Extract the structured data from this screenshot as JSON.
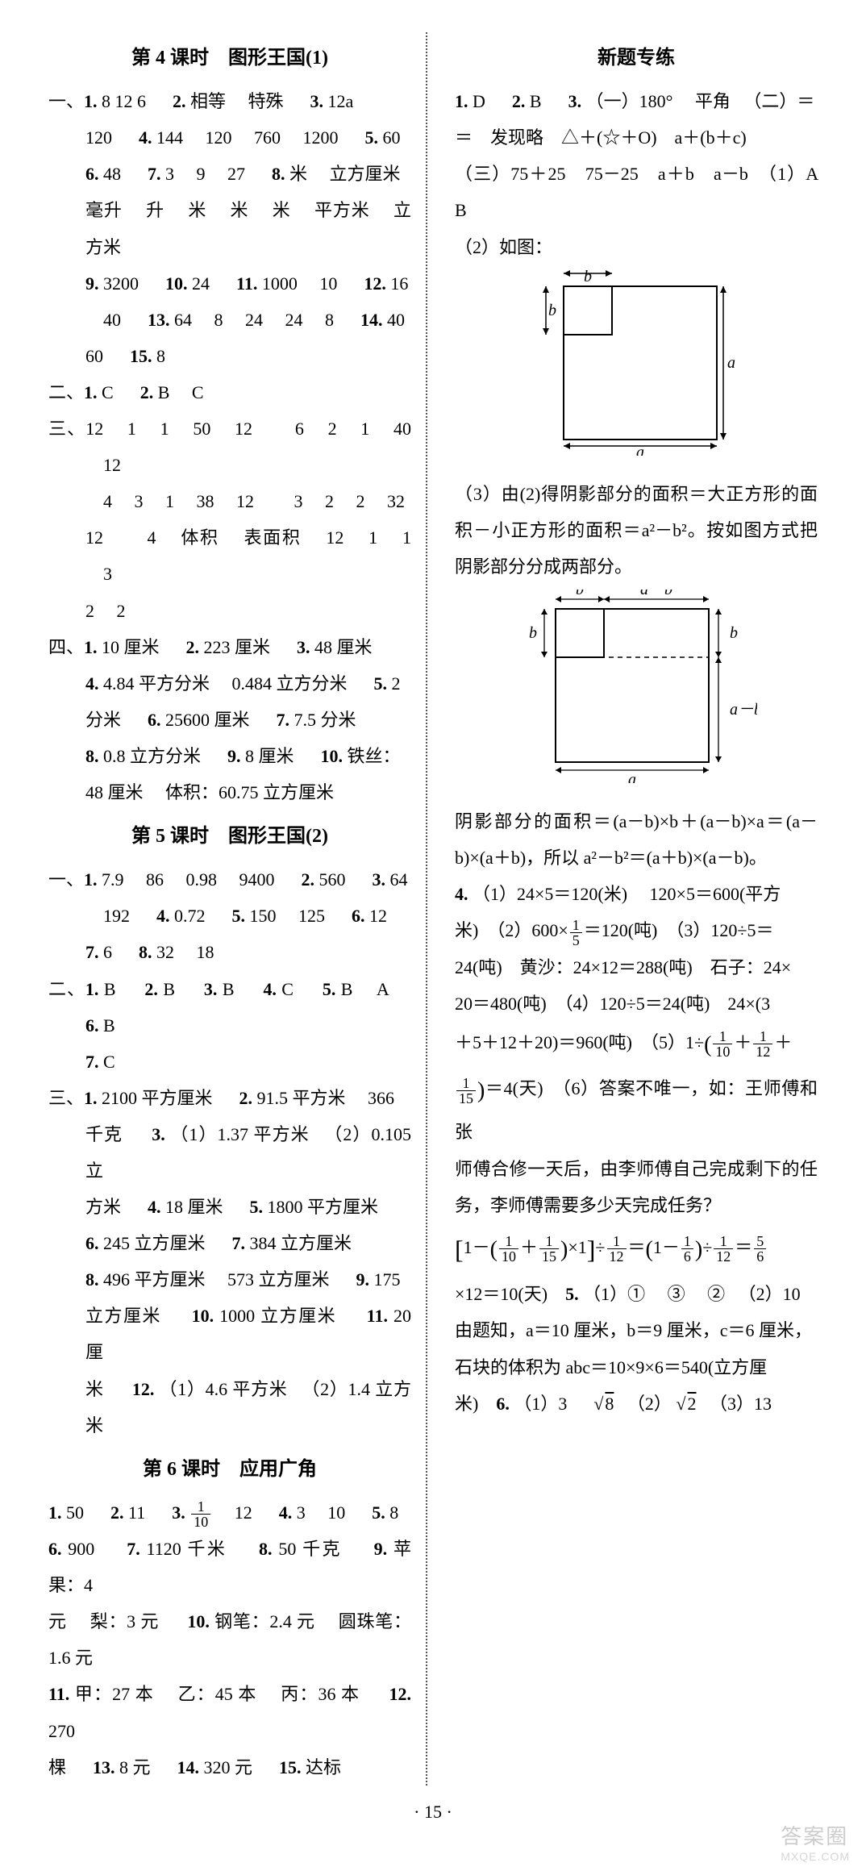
{
  "page_number_label": "· 15 ·",
  "watermark": {
    "main": "答案圈",
    "sub": "MXQE.COM"
  },
  "left": {
    "sec4": {
      "title": "第 4 课时　图形王国(1)",
      "yi": [
        {
          "lead": "一、",
          "parts": [
            "1.",
            "8",
            "12",
            "6",
            "　",
            "2.",
            "相等",
            "　特殊",
            "　",
            "3.",
            "12a"
          ]
        },
        {
          "indent": true,
          "parts": [
            "120",
            "　",
            "4.",
            "144",
            "　120",
            "　760",
            "　1200",
            "　",
            "5.",
            "60"
          ]
        },
        {
          "indent": true,
          "parts": [
            "6.",
            "48",
            "　",
            "7.",
            "3",
            "　9",
            "　27",
            "　",
            "8.",
            "米",
            "　立方厘米"
          ]
        },
        {
          "indent": true,
          "parts": [
            "毫升",
            "　升",
            "　米",
            "　米",
            "　米",
            "　平方米",
            "　立方米"
          ]
        },
        {
          "indent": true,
          "parts": [
            "9.",
            "3200",
            "　",
            "10.",
            "24",
            "　",
            "11.",
            "1000",
            "　10",
            "　",
            "12.",
            "16"
          ]
        },
        {
          "indent": true,
          "parts": [
            "　40",
            "　",
            "13.",
            "64",
            "　8",
            "　24",
            "　24",
            "　8",
            "　",
            "14.",
            "40"
          ]
        },
        {
          "indent": true,
          "parts": [
            "60",
            "　",
            "15.",
            "8"
          ]
        }
      ],
      "er": {
        "lead": "二、",
        "parts": [
          "1.",
          "C",
          "　",
          "2.",
          "B",
          "　C"
        ]
      },
      "san": [
        {
          "lead": "三、",
          "parts": [
            "12",
            "　1",
            "　1",
            "　50",
            "　12",
            "　　6",
            "　2",
            "　1",
            "　40",
            "　12"
          ]
        },
        {
          "indent": true,
          "parts": [
            "　4",
            "　3",
            "　1",
            "　38",
            "　12",
            "　　3",
            "　2",
            "　2",
            "　32"
          ]
        },
        {
          "indent": true,
          "parts": [
            "12",
            "　　4",
            "　体积",
            "　表面积",
            "　12",
            "　1",
            "　1",
            "　3"
          ]
        },
        {
          "indent": true,
          "parts": [
            "2",
            "　2"
          ]
        }
      ],
      "si": [
        {
          "lead": "四、",
          "parts": [
            "1.",
            "10 厘米",
            "　",
            "2.",
            "223 厘米",
            "　",
            "3.",
            "48 厘米"
          ]
        },
        {
          "indent": true,
          "parts": [
            "4.",
            "4.84 平方分米",
            "　0.484 立方分米",
            "　",
            "5.",
            "2"
          ]
        },
        {
          "indent": true,
          "parts": [
            "分米",
            "　",
            "6.",
            "25600 厘米",
            "　",
            "7.",
            "7.5 分米"
          ]
        },
        {
          "indent": true,
          "parts": [
            "8.",
            "0.8 立方分米",
            "　",
            "9.",
            "8 厘米",
            "　",
            "10.",
            "铁丝："
          ]
        },
        {
          "indent": true,
          "parts": [
            "48 厘米",
            "　体积：60.75 立方厘米"
          ]
        }
      ]
    },
    "sec5": {
      "title": "第 5 课时　图形王国(2)",
      "yi": [
        {
          "lead": "一、",
          "parts": [
            "1.",
            "7.9",
            "　86",
            "　0.98",
            "　9400",
            "　",
            "2.",
            "560",
            "　",
            "3.",
            "64"
          ]
        },
        {
          "indent": true,
          "parts": [
            "　192",
            "　",
            "4.",
            "0.72",
            "　",
            "5.",
            "150",
            "　125",
            "　",
            "6.",
            "12"
          ]
        },
        {
          "indent": true,
          "parts": [
            "7.",
            "6",
            "　",
            "8.",
            "32",
            "　18"
          ]
        }
      ],
      "er": [
        {
          "lead": "二、",
          "parts": [
            "1.",
            "B",
            "　",
            "2.",
            "B",
            "　",
            "3.",
            "B",
            "　",
            "4.",
            "C",
            "　",
            "5.",
            "B",
            "　A",
            "　",
            "6.",
            "B"
          ]
        },
        {
          "indent": true,
          "parts": [
            "7.",
            "C"
          ]
        }
      ],
      "san": [
        {
          "lead": "三、",
          "parts": [
            "1.",
            "2100 平方厘米",
            "　",
            "2.",
            "91.5 平方米",
            "　366"
          ]
        },
        {
          "indent": true,
          "parts": [
            "千克",
            "　",
            "3.",
            "（1）1.37 平方米",
            "　（2）0.105 立"
          ]
        },
        {
          "indent": true,
          "parts": [
            "方米",
            "　",
            "4.",
            "18 厘米",
            "　",
            "5.",
            "1800 平方厘米"
          ]
        },
        {
          "indent": true,
          "parts": [
            "6.",
            "245 立方厘米",
            "　",
            "7.",
            "384 立方厘米"
          ]
        },
        {
          "indent": true,
          "parts": [
            "8.",
            "496 平方厘米",
            "　573 立方厘米",
            "　",
            "9.",
            "175"
          ]
        },
        {
          "indent": true,
          "parts": [
            "立方厘米",
            "　",
            "10.",
            "1000 立方厘米",
            "　",
            "11.",
            "20 厘"
          ]
        },
        {
          "indent": true,
          "parts": [
            "米",
            "　",
            "12.",
            "（1）4.6 平方米",
            "　（2）1.4 立方米"
          ]
        }
      ]
    },
    "sec6": {
      "title": "第 6 课时　应用广角",
      "lines": [
        {
          "parts": [
            "1.",
            "50",
            "　",
            "2.",
            "11",
            "　",
            "3.",
            "FRAC_1_10",
            "　12",
            "　",
            "4.",
            "3",
            "　10",
            "　",
            "5.",
            "8"
          ]
        },
        {
          "parts": [
            "6.",
            "900",
            "　",
            "7.",
            "1120 千米",
            "　",
            "8.",
            "50 千克",
            "　",
            "9.",
            "苹果：4"
          ]
        },
        {
          "parts": [
            "元",
            "　梨：3 元",
            "　",
            "10.",
            "钢笔：2.4 元",
            "　圆珠笔：1.6 元"
          ]
        },
        {
          "parts": [
            "11.",
            "甲：27 本",
            "　乙：45 本",
            "　丙：36 本",
            "　",
            "12.",
            "270"
          ]
        },
        {
          "parts": [
            "棵",
            "　",
            "13.",
            "8 元",
            "　",
            "14.",
            "320 元",
            "　",
            "15.",
            "达标"
          ]
        }
      ]
    }
  },
  "right": {
    "title": "新题专练",
    "line1": {
      "parts": [
        "1.",
        "D",
        "　",
        "2.",
        "B",
        "　",
        "3.",
        "（一）180°",
        "　平角",
        "　（二）＝"
      ]
    },
    "line2": "＝　发现略　△＋(☆＋O)　a＋(b＋c)",
    "line3": "（三）75＋25　75－25　a＋b　a－b　（1）A　B",
    "line4": "（2）如图：",
    "fig1": {
      "outer_label_a": "a",
      "inner_label_b": "b",
      "outer_size": 190,
      "inner_size": 60,
      "stroke": "#000000",
      "text_fontsize": 20
    },
    "line5": "（3）由(2)得阴影部分的面积＝大正方形的面积－小正方形的面积＝a²－b²。按如图方式把阴影部分分成两部分。",
    "fig2": {
      "outer_label_a": "a",
      "label_b": "b",
      "label_amb": "a－b",
      "outer_size": 190,
      "b_size": 60,
      "stroke": "#000000",
      "text_fontsize": 20
    },
    "line6": "阴影部分的面积＝(a－b)×b＋(a－b)×a＝(a－b)×(a＋b)，所以 a²－b²＝(a＋b)×(a－b)。",
    "q4_p1": {
      "parts": [
        "4.",
        "（1）24×5＝120(米)",
        "　120×5＝600(平方"
      ]
    },
    "q4_p2": "米)　（2）600×",
    "q4_frac15": {
      "n": "1",
      "d": "5"
    },
    "q4_p2b": "＝120(吨)　（3）120÷5＝",
    "q4_p3": "24(吨)　黄沙：24×12＝288(吨)　石子：24×",
    "q4_p4": "20＝480(吨)　（4）120÷5＝24(吨)　24×(3",
    "q4_p5a": "＋5＋12＋20)＝960(吨)　（5）1÷",
    "q4_frac110": {
      "n": "1",
      "d": "10"
    },
    "q4_frac112": {
      "n": "1",
      "d": "12"
    },
    "q4_frac115": {
      "n": "1",
      "d": "15"
    },
    "q4_p5b": "＝4(天)　（6）答案不唯一，如：王师傅和张",
    "q4_p6": "师傅合修一天后，由李师傅自己完成剩下的任务，李师傅需要多少天完成任务？",
    "q4_eq_pieces": {
      "one_minus": "1－",
      "times1": "×1",
      "div": "÷",
      "eq": "＝",
      "one_minus_open": "1－",
      "frac16": {
        "n": "1",
        "d": "6"
      },
      "frac56": {
        "n": "5",
        "d": "6"
      }
    },
    "q4_tail": "×12＝10(天)　",
    "q5_parts": [
      "5.",
      "（1）①",
      "　③",
      "　②",
      "　（2）10"
    ],
    "q5b": "由题知，a＝10 厘米，b＝9 厘米，c＝6 厘米，",
    "q5c": "石块的体积为 abc＝10×9×6＝540(立方厘",
    "q5d_pre": "米)　",
    "q6_parts": [
      "6.",
      "（1）3",
      "　",
      "SQRT8",
      "　（2）",
      "SQRT2",
      "　（3）13"
    ]
  }
}
